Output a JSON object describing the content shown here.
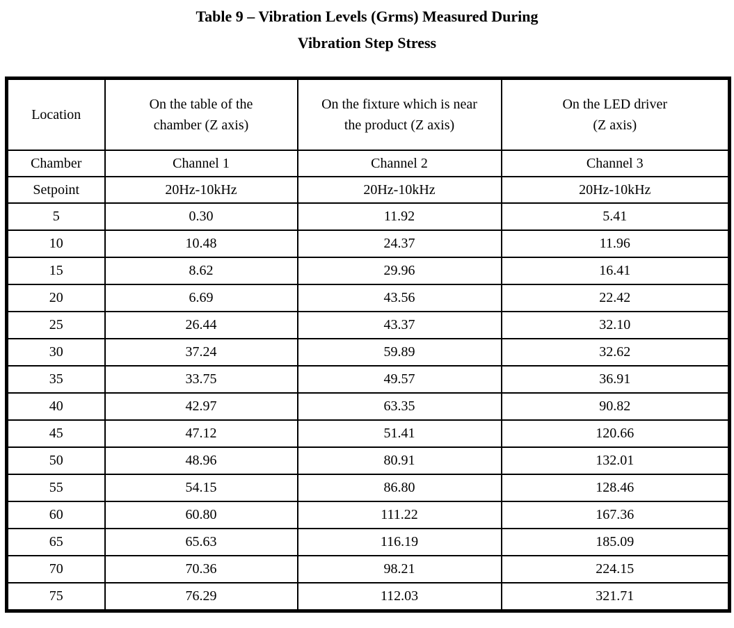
{
  "page": {
    "background_color": "#ffffff",
    "text_color": "#000000"
  },
  "title": {
    "line1": "Table 9 – Vibration Levels (Grms) Measured During",
    "line2": "Vibration Step Stress"
  },
  "table": {
    "header": {
      "location_label": "Location",
      "col_table_of_chamber": "On the table of the\nchamber (Z axis)",
      "col_fixture_near_product": "On the fixture which is near\nthe product (Z axis)",
      "col_led_driver": "On the LED driver\n(Z axis)",
      "chamber_row": [
        "Chamber",
        "Channel 1",
        "Channel 2",
        "Channel 3"
      ],
      "setpoint_row": [
        "Setpoint",
        "20Hz-10kHz",
        "20Hz-10kHz",
        "20Hz-10kHz"
      ]
    },
    "rows": [
      {
        "setpoint": "5",
        "ch1": "0.30",
        "ch2": "11.92",
        "ch3": "5.41"
      },
      {
        "setpoint": "10",
        "ch1": "10.48",
        "ch2": "24.37",
        "ch3": "11.96"
      },
      {
        "setpoint": "15",
        "ch1": "8.62",
        "ch2": "29.96",
        "ch3": "16.41"
      },
      {
        "setpoint": "20",
        "ch1": "6.69",
        "ch2": "43.56",
        "ch3": "22.42"
      },
      {
        "setpoint": "25",
        "ch1": "26.44",
        "ch2": "43.37",
        "ch3": "32.10"
      },
      {
        "setpoint": "30",
        "ch1": "37.24",
        "ch2": "59.89",
        "ch3": "32.62"
      },
      {
        "setpoint": "35",
        "ch1": "33.75",
        "ch2": "49.57",
        "ch3": "36.91"
      },
      {
        "setpoint": "40",
        "ch1": "42.97",
        "ch2": "63.35",
        "ch3": "90.82"
      },
      {
        "setpoint": "45",
        "ch1": "47.12",
        "ch2": "51.41",
        "ch3": "120.66"
      },
      {
        "setpoint": "50",
        "ch1": "48.96",
        "ch2": "80.91",
        "ch3": "132.01"
      },
      {
        "setpoint": "55",
        "ch1": "54.15",
        "ch2": "86.80",
        "ch3": "128.46"
      },
      {
        "setpoint": "60",
        "ch1": "60.80",
        "ch2": "111.22",
        "ch3": "167.36"
      },
      {
        "setpoint": "65",
        "ch1": "65.63",
        "ch2": "116.19",
        "ch3": "185.09"
      },
      {
        "setpoint": "70",
        "ch1": "70.36",
        "ch2": "98.21",
        "ch3": "224.15"
      },
      {
        "setpoint": "75",
        "ch1": "76.29",
        "ch2": "112.03",
        "ch3": "321.71"
      }
    ]
  }
}
